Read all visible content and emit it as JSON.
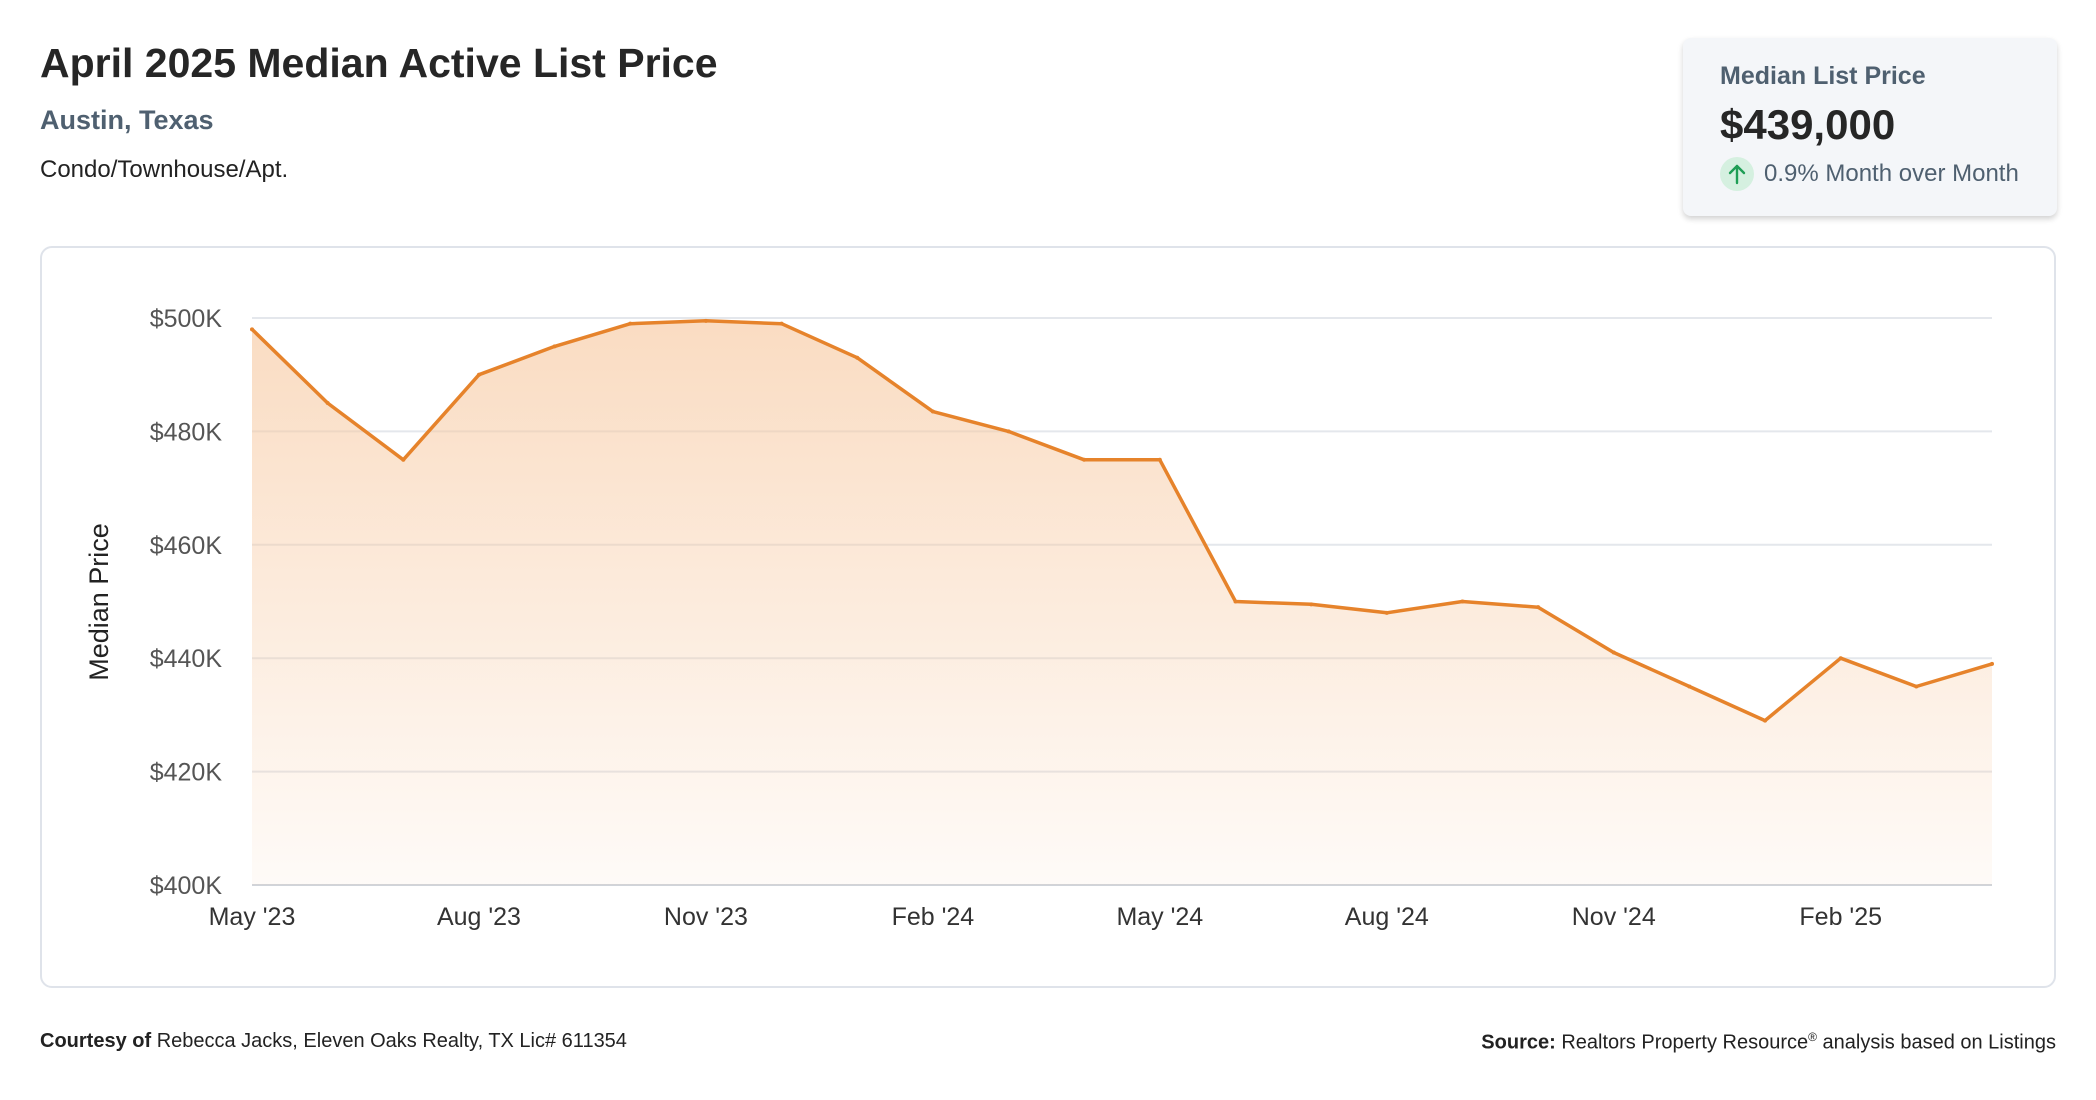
{
  "header": {
    "title": "April 2025 Median Active List Price",
    "location": "Austin, Texas",
    "property_type": "Condo/Townhouse/Apt."
  },
  "stat_card": {
    "label": "Median List Price",
    "value": "$439,000",
    "change": "0.9% Month over Month",
    "trend_icon": "arrow-up-icon",
    "trend_color": "#1e9e55"
  },
  "chart_data": {
    "type": "area",
    "ylabel": "Median Price",
    "xlabel": "",
    "ylim": [
      400000,
      500000
    ],
    "y_ticks": [
      400000,
      420000,
      440000,
      460000,
      480000,
      500000
    ],
    "y_tick_labels": [
      "$400K",
      "$420K",
      "$440K",
      "$460K",
      "$480K",
      "$500K"
    ],
    "x_tick_labels": [
      "May '23",
      "Aug '23",
      "Nov '23",
      "Feb '24",
      "May '24",
      "Aug '24",
      "Nov '24",
      "Feb '25"
    ],
    "x": [
      "2023-05",
      "2023-06",
      "2023-07",
      "2023-08",
      "2023-09",
      "2023-10",
      "2023-11",
      "2023-12",
      "2024-01",
      "2024-02",
      "2024-03",
      "2024-04",
      "2024-05",
      "2024-06",
      "2024-07",
      "2024-08",
      "2024-09",
      "2024-10",
      "2024-11",
      "2024-12",
      "2025-01",
      "2025-02",
      "2025-03",
      "2025-04"
    ],
    "series": [
      {
        "values": [
          498000,
          485000,
          475000,
          490000,
          495000,
          499000,
          499500,
          499000,
          493000,
          483500,
          480000,
          475000,
          475000,
          450000,
          449500,
          448000,
          450000,
          449000,
          441000,
          435000,
          429000,
          440000,
          435000,
          439000
        ]
      }
    ],
    "line_color": "#e6832b",
    "fill_color": "#f7c9a1",
    "grid": true
  },
  "footer": {
    "courtesy_label": "Courtesy of",
    "courtesy_text": "Rebecca Jacks, Eleven Oaks Realty, TX Lic# 611354",
    "source_label": "Source:",
    "source_name": "Realtors Property Resource",
    "source_mark": "®",
    "source_text": "analysis based on Listings"
  }
}
